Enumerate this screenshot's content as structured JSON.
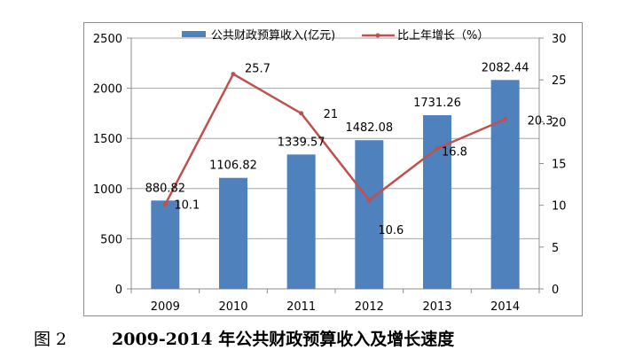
{
  "chart_data": {
    "type": "bar+line",
    "categories": [
      "2009",
      "2010",
      "2011",
      "2012",
      "2013",
      "2014"
    ],
    "series": [
      {
        "name": "公共财政预算收入(亿元)",
        "type": "bar",
        "axis": "left",
        "color": "#4f81bd",
        "values": [
          880.82,
          1106.82,
          1339.57,
          1482.08,
          1731.26,
          2082.44
        ],
        "labels": [
          "880.82",
          "1106.82",
          "1339.57",
          "1482.08",
          "1731.26",
          "2082.44"
        ]
      },
      {
        "name": "比上年增长（%）",
        "type": "line",
        "axis": "right",
        "color": "#c0504d",
        "values": [
          10.1,
          25.7,
          21,
          10.6,
          16.8,
          20.3
        ],
        "labels": [
          "10.1",
          "25.7",
          "21",
          "10.6",
          "16.8",
          "20.3"
        ]
      }
    ],
    "y_left": {
      "ylim": [
        0,
        2500
      ],
      "ticks": [
        "0",
        "500",
        "1000",
        "1500",
        "2000",
        "2500"
      ]
    },
    "y_right": {
      "ylim": [
        0,
        30
      ],
      "ticks": [
        "0",
        "5",
        "10",
        "15",
        "20",
        "25",
        "30"
      ]
    },
    "legend_position": "top"
  },
  "caption": {
    "figure_number": "图 2",
    "title": "2009-2014 年公共财政预算收入及增长速度"
  }
}
